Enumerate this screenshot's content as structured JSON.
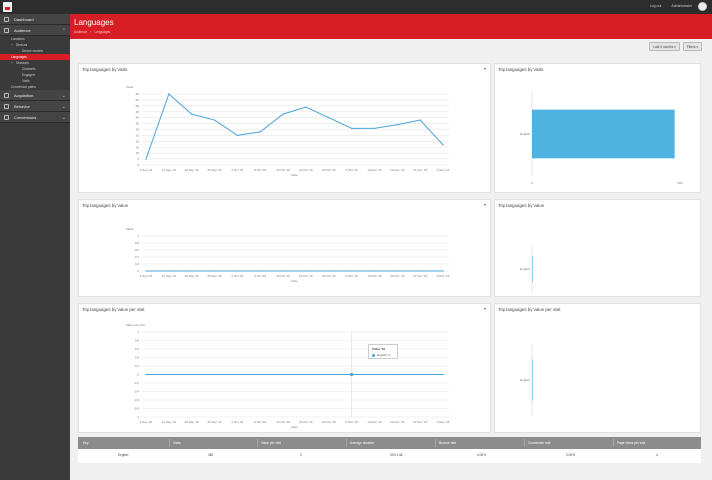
{
  "topbar": {
    "links": [
      "Log out",
      "Administrator"
    ]
  },
  "sidebar": {
    "items": [
      {
        "label": "Dashboard",
        "type": "top",
        "icon": "grid-icon"
      },
      {
        "label": "Audience",
        "type": "top",
        "icon": "users-icon",
        "chevron": "up"
      },
      {
        "label": "Locations",
        "type": "lvl1"
      },
      {
        "label": "Devices",
        "type": "lvl1",
        "plus": true
      },
      {
        "label": "Device models",
        "type": "lvl2"
      },
      {
        "label": "Languages",
        "type": "lvl1",
        "active": true
      },
      {
        "label": "Sessions",
        "type": "lvl1",
        "plus": true
      },
      {
        "label": "Channels",
        "type": "lvl2"
      },
      {
        "label": "Engaged",
        "type": "lvl2"
      },
      {
        "label": "Visits",
        "type": "lvl2"
      },
      {
        "label": "Conversion paths",
        "type": "lvl1"
      },
      {
        "label": "Acquisition",
        "type": "top",
        "icon": "magnet-icon",
        "chevron": "down"
      },
      {
        "label": "Behavior",
        "type": "top",
        "icon": "cursor-icon",
        "chevron": "down"
      },
      {
        "label": "Conversions",
        "type": "top",
        "icon": "flag-icon",
        "chevron": "down"
      }
    ]
  },
  "header": {
    "title": "Languages",
    "breadcrumb": [
      "Audience",
      "Languages"
    ]
  },
  "toolbar": {
    "date_filter": "Last 6 months",
    "filters": "Filters"
  },
  "panels": {
    "visits_line": {
      "title": "Top languages by visits",
      "ylabel": "Visits",
      "xlabel": "Date"
    },
    "visits_bar": {
      "title": "Top languages by visits"
    },
    "value_line": {
      "title": "Top languages by value",
      "ylabel": "Value",
      "xlabel": "Date"
    },
    "value_bar": {
      "title": "Top languages by value"
    },
    "vpv_line": {
      "title": "Top languages by value per visit",
      "ylabel": "Value per visit",
      "xlabel": "Date"
    },
    "vpv_bar": {
      "title": "Top languages by value per visit"
    }
  },
  "chart_data": [
    {
      "type": "line",
      "title": "Top languages by visits",
      "xlabel": "Date",
      "ylabel": "Visits",
      "categories": [
        "4 Sep '16",
        "11 Sep '16",
        "18 Sep '16",
        "25 Sep '16",
        "2 Oct '16",
        "9 Oct '16",
        "16 Oct '16",
        "23 Oct '16",
        "30 Oct '16",
        "6 Nov '16",
        "13 Nov '16",
        "20 Nov '16",
        "27 Nov '16",
        "4 Dec '16"
      ],
      "series": [
        {
          "name": "English",
          "values": [
            5,
            60,
            43,
            38,
            25,
            28,
            43,
            49,
            40,
            31,
            31,
            34,
            38,
            17
          ]
        }
      ],
      "yticks": [
        0,
        5,
        10,
        15,
        20,
        25,
        30,
        35,
        40,
        45,
        50,
        55,
        60
      ],
      "ylim": [
        0,
        60
      ],
      "color": "#4aa3d8"
    },
    {
      "type": "bar",
      "orientation": "horizontal",
      "title": "Top languages by visits",
      "categories": [
        "English"
      ],
      "values": [
        482
      ],
      "xticks": [
        "0",
        "500"
      ],
      "xlim": [
        0,
        500
      ],
      "color": "#4eb3e0"
    },
    {
      "type": "line",
      "title": "Top languages by value",
      "xlabel": "Date",
      "ylabel": "Value",
      "categories": [
        "4 Sep '16",
        "11 Sep '16",
        "18 Sep '16",
        "25 Sep '16",
        "2 Oct '16",
        "9 Oct '16",
        "16 Oct '16",
        "23 Oct '16",
        "30 Oct '16",
        "6 Nov '16",
        "13 Nov '16",
        "20 Nov '16",
        "27 Nov '16",
        "4 Dec '16"
      ],
      "series": [
        {
          "name": "English",
          "values": [
            0,
            0,
            0,
            0,
            0,
            0,
            0,
            0,
            0,
            0,
            0,
            0,
            0,
            0
          ]
        }
      ],
      "yticks": [
        "0",
        "0.2",
        "0.4",
        "0.6",
        "0.8",
        "1"
      ],
      "ylim": [
        0,
        1
      ],
      "color": "#4aa3d8"
    },
    {
      "type": "bar",
      "orientation": "horizontal",
      "title": "Top languages by value",
      "categories": [
        "English"
      ],
      "values": [
        0
      ],
      "color": "#4eb3e0"
    },
    {
      "type": "line",
      "title": "Top languages by value per visit",
      "xlabel": "Date",
      "ylabel": "Value per visit",
      "categories": [
        "4 Sep '16",
        "11 Sep '16",
        "18 Sep '16",
        "25 Sep '16",
        "2 Oct '16",
        "9 Oct '16",
        "16 Oct '16",
        "23 Oct '16",
        "30 Oct '16",
        "6 Nov '16",
        "13 Nov '16",
        "20 Nov '16",
        "27 Nov '16",
        "4 Dec '16"
      ],
      "series": [
        {
          "name": "English",
          "values": [
            0,
            0,
            0,
            0,
            0,
            0,
            0,
            0,
            0,
            0,
            0,
            0,
            0,
            0
          ]
        }
      ],
      "yticks": [
        "-1",
        "-0.8",
        "-0.6",
        "-0.4",
        "-0.2",
        "0",
        "0.2",
        "0.4",
        "0.6",
        "0.8",
        "1"
      ],
      "ylim": [
        -1,
        1
      ],
      "color": "#4aa3d8",
      "tooltip": {
        "title": "6 Nov '16",
        "series": "English",
        "value": "0"
      }
    },
    {
      "type": "bar",
      "orientation": "horizontal",
      "title": "Top languages by value per visit",
      "categories": [
        "English"
      ],
      "values": [
        0
      ],
      "color": "#4eb3e0"
    }
  ],
  "table": {
    "columns": [
      "Key",
      "Visits",
      "Value per visit",
      "Average duration",
      "Bounce rate",
      "Conversion rate",
      "Page views per visit"
    ],
    "rows": [
      [
        "English",
        "482",
        "0",
        "00:01:48",
        "0.00%",
        "0.00%",
        "4"
      ]
    ]
  }
}
